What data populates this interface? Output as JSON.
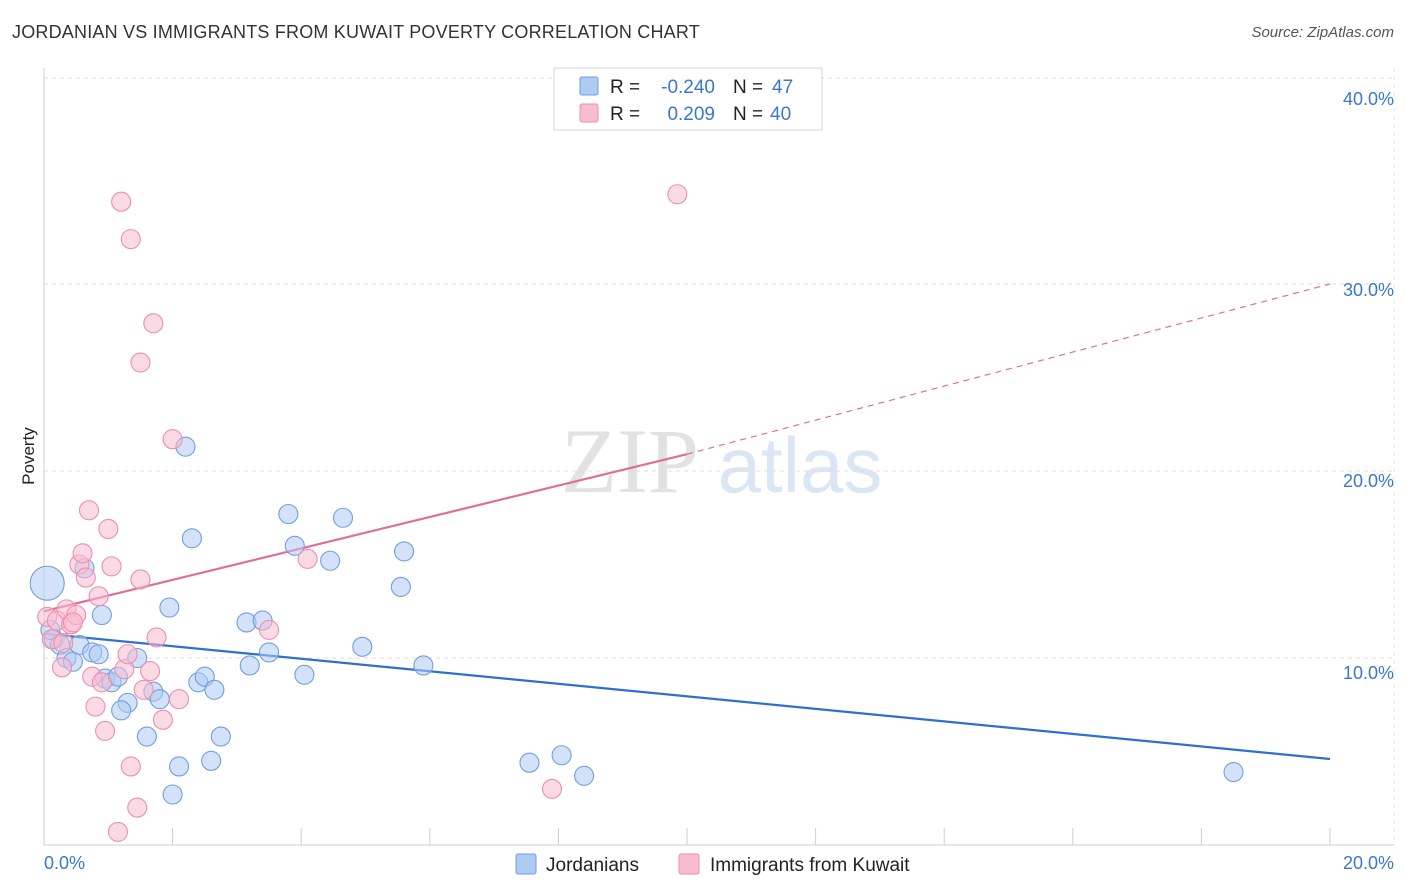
{
  "header": {
    "title": "JORDANIAN VS IMMIGRANTS FROM KUWAIT POVERTY CORRELATION CHART",
    "source": "Source: ZipAtlas.com"
  },
  "watermark": {
    "zip": "ZIP",
    "atlas": "atlas"
  },
  "legend_top": [
    {
      "r_label": "R =",
      "r_value": "-0.240",
      "n_label": "N =",
      "n_value": "47",
      "color": "#aecbf2"
    },
    {
      "r_label": "R =",
      "r_value": "0.209",
      "n_label": "N =",
      "n_value": "40",
      "color": "#f7bcd0"
    }
  ],
  "legend_bottom": [
    {
      "label": "Jordanians",
      "color": "#aecbf2"
    },
    {
      "label": "Immigrants from Kuwait",
      "color": "#f7bcd0"
    }
  ],
  "chart_data": {
    "type": "scatter",
    "title": "JORDANIAN VS IMMIGRANTS FROM KUWAIT POVERTY CORRELATION CHART",
    "xlabel": "",
    "ylabel": "Poverty",
    "xlim": [
      0,
      20
    ],
    "ylim": [
      0,
      40
    ],
    "x_tick_labels": [
      "0.0%",
      "20.0%"
    ],
    "y_tick_labels": [
      "10.0%",
      "20.0%",
      "30.0%",
      "40.0%"
    ],
    "y_ticks": [
      10,
      20,
      30,
      40
    ],
    "grid": true,
    "legend_placement": "top-center",
    "series": [
      {
        "name": "Jordanians",
        "color": "#6f9fe0",
        "fill": "#aecbf2",
        "points": [
          [
            0.05,
            14.0
          ],
          [
            0.15,
            11.0
          ],
          [
            0.25,
            10.7
          ],
          [
            0.35,
            10.0
          ],
          [
            0.45,
            9.8
          ],
          [
            0.55,
            10.7
          ],
          [
            0.63,
            14.8
          ],
          [
            0.75,
            10.3
          ],
          [
            0.85,
            10.2
          ],
          [
            0.9,
            12.3
          ],
          [
            0.95,
            8.9
          ],
          [
            1.05,
            8.7
          ],
          [
            1.15,
            9.0
          ],
          [
            1.3,
            7.6
          ],
          [
            1.45,
            10.0
          ],
          [
            1.6,
            5.8
          ],
          [
            1.7,
            8.2
          ],
          [
            1.8,
            7.8
          ],
          [
            1.95,
            12.7
          ],
          [
            2.1,
            4.2
          ],
          [
            2.2,
            21.3
          ],
          [
            2.3,
            16.4
          ],
          [
            2.4,
            8.7
          ],
          [
            2.5,
            9.0
          ],
          [
            2.6,
            4.5
          ],
          [
            2.65,
            8.3
          ],
          [
            2.75,
            5.8
          ],
          [
            3.15,
            11.9
          ],
          [
            3.2,
            9.6
          ],
          [
            3.4,
            12.0
          ],
          [
            3.5,
            10.3
          ],
          [
            3.8,
            17.7
          ],
          [
            3.9,
            16.0
          ],
          [
            4.05,
            9.1
          ],
          [
            4.45,
            15.2
          ],
          [
            4.65,
            17.5
          ],
          [
            4.95,
            10.6
          ],
          [
            5.55,
            13.8
          ],
          [
            5.6,
            15.7
          ],
          [
            5.9,
            9.6
          ],
          [
            7.55,
            4.4
          ],
          [
            8.05,
            4.8
          ],
          [
            8.4,
            3.7
          ],
          [
            18.5,
            3.9
          ],
          [
            0.1,
            11.5
          ],
          [
            1.2,
            7.2
          ],
          [
            2.0,
            2.7
          ]
        ]
      },
      {
        "name": "Immigrants from Kuwait",
        "color": "#ec8fb0",
        "fill": "#f7bcd0",
        "points": [
          [
            0.05,
            12.2
          ],
          [
            0.12,
            11.0
          ],
          [
            0.2,
            12.0
          ],
          [
            0.28,
            9.5
          ],
          [
            0.35,
            12.6
          ],
          [
            0.42,
            11.8
          ],
          [
            0.5,
            12.3
          ],
          [
            0.55,
            15.0
          ],
          [
            0.6,
            15.6
          ],
          [
            0.65,
            14.3
          ],
          [
            0.7,
            17.9
          ],
          [
            0.75,
            9.0
          ],
          [
            0.8,
            7.4
          ],
          [
            0.85,
            13.3
          ],
          [
            0.95,
            6.1
          ],
          [
            1.0,
            16.9
          ],
          [
            1.05,
            14.9
          ],
          [
            1.15,
            0.7
          ],
          [
            1.25,
            9.4
          ],
          [
            1.3,
            10.2
          ],
          [
            1.35,
            4.2
          ],
          [
            1.45,
            2.0
          ],
          [
            1.5,
            14.2
          ],
          [
            1.55,
            8.3
          ],
          [
            1.65,
            9.3
          ],
          [
            1.75,
            11.1
          ],
          [
            1.85,
            6.7
          ],
          [
            2.0,
            21.7
          ],
          [
            2.1,
            7.8
          ],
          [
            1.2,
            34.4
          ],
          [
            1.35,
            32.4
          ],
          [
            1.5,
            25.8
          ],
          [
            1.7,
            27.9
          ],
          [
            3.5,
            11.5
          ],
          [
            4.1,
            15.3
          ],
          [
            7.9,
            3.0
          ],
          [
            9.85,
            34.8
          ],
          [
            0.9,
            8.7
          ],
          [
            0.45,
            11.9
          ],
          [
            0.3,
            10.8
          ]
        ]
      }
    ],
    "trend_lines": [
      {
        "series": "Jordanians",
        "x": [
          0,
          20
        ],
        "y": [
          11.3,
          4.6
        ],
        "color": "#2f6fd0"
      },
      {
        "series": "Immigrants from Kuwait",
        "x": [
          0,
          10
        ],
        "y": [
          12.5,
          20.9
        ],
        "color": "#e06f98",
        "dashed_extension_to": [
          20,
          30.0
        ]
      }
    ]
  }
}
